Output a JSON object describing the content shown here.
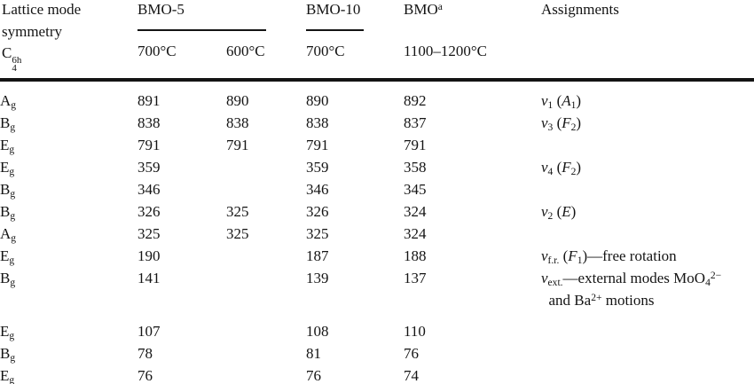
{
  "header": {
    "col1_line1": "Lattice mode",
    "col1_line2": "symmetry",
    "col1_symbol": {
      "base": "C",
      "sup": "6",
      "sub": "4",
      "sub_h": "h"
    },
    "groups": [
      {
        "label": "BMO-5",
        "sub1": "700°C",
        "sub2": "600°C"
      },
      {
        "label": "BMO-10",
        "sub1": "700°C"
      },
      {
        "label": "BMO",
        "sup": "a",
        "sub1": "1100–1200°C"
      },
      {
        "label": "Assignments"
      }
    ]
  },
  "table": {
    "columns": [
      "Lattice mode symmetry C6_4h",
      "BMO-5 700°C",
      "BMO-5 600°C",
      "BMO-10 700°C",
      "BMO 1100–1200°C",
      "Assignments"
    ],
    "rows": [
      {
        "symmetry": "A<sub>g</sub>",
        "values": [
          "891",
          "890",
          "890",
          "892"
        ],
        "assignment": "<i>ν</i><sub>1</sub> (<i>A</i><sub>1</sub>)"
      },
      {
        "symmetry": "B<sub>g</sub>",
        "values": [
          "838",
          "838",
          "838",
          "837"
        ],
        "assignment": "<i>ν</i><sub>3</sub> (<i>F</i><sub>2</sub>)"
      },
      {
        "symmetry": "E<sub>g</sub>",
        "values": [
          "791",
          "791",
          "791",
          "791"
        ],
        "assignment": ""
      },
      {
        "symmetry": "E<sub>g</sub>",
        "values": [
          "359",
          "",
          "359",
          "358"
        ],
        "assignment": "<i>ν</i><sub>4</sub> (<i>F</i><sub>2</sub>)"
      },
      {
        "symmetry": "B<sub>g</sub>",
        "values": [
          "346",
          "",
          "346",
          "345"
        ],
        "assignment": ""
      },
      {
        "symmetry": "B<sub>g</sub>",
        "values": [
          "326",
          "325",
          "326",
          "324"
        ],
        "assignment": "<i>ν</i><sub>2</sub> (<i>E</i>)"
      },
      {
        "symmetry": "A<sub>g</sub>",
        "values": [
          "325",
          "325",
          "325",
          "324"
        ],
        "assignment": ""
      },
      {
        "symmetry": "E<sub>g</sub>",
        "values": [
          "190",
          "",
          "187",
          "188"
        ],
        "assignment": "<i>ν</i><sub>f.r.</sub> (<i>F</i><sub>1</sub>)—free rotation"
      },
      {
        "symmetry": "B<sub>g</sub>",
        "values": [
          "141",
          "",
          "139",
          "137"
        ],
        "assignment": "<i>ν</i><sub>ext.</sub>—external modes MoO<sub>4</sub><sup>2−</sup><br>&nbsp;&nbsp;and Ba<sup>2+</sup> motions"
      },
      {
        "symmetry": "E<sub>g</sub>",
        "values": [
          "107",
          "",
          "108",
          "110"
        ],
        "assignment": ""
      },
      {
        "symmetry": "B<sub>g</sub>",
        "values": [
          "78",
          "",
          "81",
          "76"
        ],
        "assignment": ""
      },
      {
        "symmetry": "E<sub>g</sub>",
        "values": [
          "76",
          "",
          "76",
          "74"
        ],
        "assignment": ""
      }
    ]
  }
}
